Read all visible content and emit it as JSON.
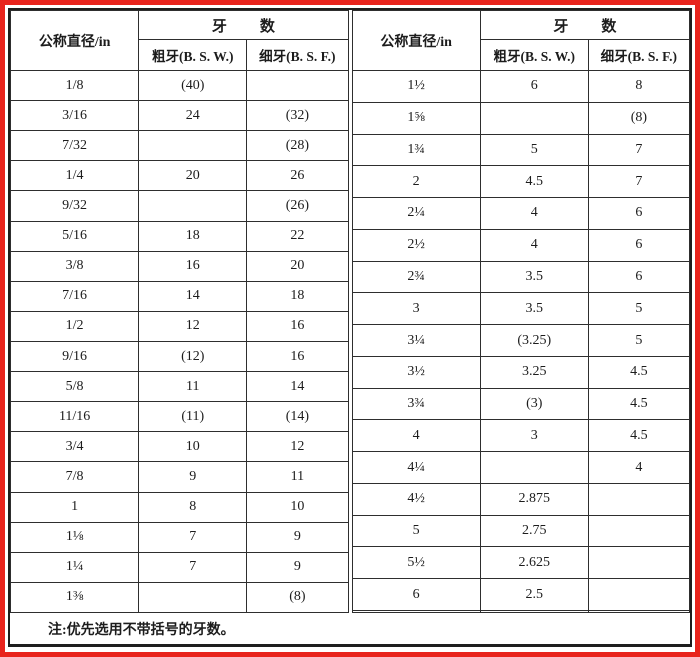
{
  "page": {
    "note": "注:优先选用不带括号的牙数。",
    "red_frame_color": "#e8241d",
    "line_color": "#2e2e2e"
  },
  "tables": [
    {
      "header": {
        "diameter": "公称直径/in",
        "thread_count": "牙数",
        "coarse": "粗牙(B. S. W.)",
        "fine": "细牙(B. S. F.)"
      },
      "rows": [
        [
          "1/8",
          "(40)",
          ""
        ],
        [
          "3/16",
          "24",
          "(32)"
        ],
        [
          "7/32",
          "",
          "(28)"
        ],
        [
          "1/4",
          "20",
          "26"
        ],
        [
          "9/32",
          "",
          "(26)"
        ],
        [
          "5/16",
          "18",
          "22"
        ],
        [
          "3/8",
          "16",
          "20"
        ],
        [
          "7/16",
          "14",
          "18"
        ],
        [
          "1/2",
          "12",
          "16"
        ],
        [
          "9/16",
          "(12)",
          "16"
        ],
        [
          "5/8",
          "11",
          "14"
        ],
        [
          "11/16",
          "(11)",
          "(14)"
        ],
        [
          "3/4",
          "10",
          "12"
        ],
        [
          "7/8",
          "9",
          "11"
        ],
        [
          "1",
          "8",
          "10"
        ],
        [
          "1⅛",
          "7",
          "9"
        ],
        [
          "1¼",
          "7",
          "9"
        ],
        [
          "1⅜",
          "",
          "(8)"
        ]
      ]
    },
    {
      "header": {
        "diameter": "公称直径/in",
        "thread_count": "牙数",
        "coarse": "粗牙(B. S. W.)",
        "fine": "细牙(B. S. F.)"
      },
      "rows": [
        [
          "1½",
          "6",
          "8"
        ],
        [
          "1⅝",
          "",
          "(8)"
        ],
        [
          "1¾",
          "5",
          "7"
        ],
        [
          "2",
          "4.5",
          "7"
        ],
        [
          "2¼",
          "4",
          "6"
        ],
        [
          "2½",
          "4",
          "6"
        ],
        [
          "2¾",
          "3.5",
          "6"
        ],
        [
          "3",
          "3.5",
          "5"
        ],
        [
          "3¼",
          "(3.25)",
          "5"
        ],
        [
          "3½",
          "3.25",
          "4.5"
        ],
        [
          "3¾",
          "(3)",
          "4.5"
        ],
        [
          "4",
          "3",
          "4.5"
        ],
        [
          "4¼",
          "",
          "4"
        ],
        [
          "4½",
          "2.875",
          ""
        ],
        [
          "5",
          "2.75",
          ""
        ],
        [
          "5½",
          "2.625",
          ""
        ],
        [
          "6",
          "2.5",
          ""
        ],
        [
          "",
          "",
          ""
        ]
      ]
    }
  ]
}
